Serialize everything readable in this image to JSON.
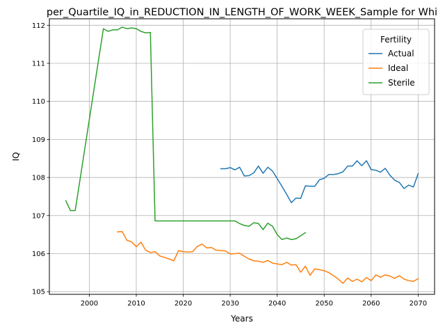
{
  "chart_data": {
    "type": "line",
    "title": "per_Quartile_IQ_in_REDUCTION_IN_LENGTH_OF_WORK_WEEK_Sample for Whi",
    "xlabel": "Years",
    "ylabel": "IQ",
    "xlim": [
      1991.5,
      2073.5
    ],
    "ylim": [
      104.93,
      112.17
    ],
    "x_ticks": [
      2000,
      2010,
      2020,
      2030,
      2040,
      2050,
      2060,
      2070
    ],
    "y_ticks": [
      105,
      106,
      107,
      108,
      109,
      110,
      111,
      112
    ],
    "grid": true,
    "legend": {
      "title": "Fertility",
      "placement": "top-right"
    },
    "series": [
      {
        "name": "Actual",
        "color": "#1f77b4",
        "points": [
          [
            2028,
            108.23
          ],
          [
            2029,
            108.23
          ],
          [
            2030,
            108.26
          ],
          [
            2031,
            108.2
          ],
          [
            2032,
            108.27
          ],
          [
            2033,
            108.04
          ],
          [
            2034,
            108.05
          ],
          [
            2035,
            108.12
          ],
          [
            2036,
            108.3
          ],
          [
            2037,
            108.11
          ],
          [
            2038,
            108.27
          ],
          [
            2039,
            108.17
          ],
          [
            2040,
            107.97
          ],
          [
            2041,
            107.77
          ],
          [
            2042,
            107.56
          ],
          [
            2043,
            107.34
          ],
          [
            2044,
            107.46
          ],
          [
            2045,
            107.45
          ],
          [
            2046,
            107.78
          ],
          [
            2047,
            107.77
          ],
          [
            2048,
            107.77
          ],
          [
            2049,
            107.94
          ],
          [
            2050,
            107.98
          ],
          [
            2051,
            108.08
          ],
          [
            2052,
            108.08
          ],
          [
            2053,
            108.1
          ],
          [
            2054,
            108.15
          ],
          [
            2055,
            108.3
          ],
          [
            2056,
            108.3
          ],
          [
            2057,
            108.44
          ],
          [
            2058,
            108.31
          ],
          [
            2059,
            108.44
          ],
          [
            2060,
            108.21
          ],
          [
            2061,
            108.19
          ],
          [
            2062,
            108.14
          ],
          [
            2063,
            108.24
          ],
          [
            2064,
            108.06
          ],
          [
            2065,
            107.93
          ],
          [
            2066,
            107.87
          ],
          [
            2067,
            107.71
          ],
          [
            2068,
            107.8
          ],
          [
            2069,
            107.75
          ],
          [
            2070,
            108.1
          ]
        ]
      },
      {
        "name": "Ideal",
        "color": "#ff7f0e",
        "points": [
          [
            2006,
            106.57
          ],
          [
            2007,
            106.58
          ],
          [
            2008,
            106.35
          ],
          [
            2009,
            106.31
          ],
          [
            2010,
            106.18
          ],
          [
            2011,
            106.3
          ],
          [
            2012,
            106.09
          ],
          [
            2013,
            106.03
          ],
          [
            2014,
            106.05
          ],
          [
            2015,
            105.94
          ],
          [
            2016,
            105.9
          ],
          [
            2017,
            105.86
          ],
          [
            2018,
            105.81
          ],
          [
            2019,
            106.08
          ],
          [
            2020,
            106.05
          ],
          [
            2021,
            106.04
          ],
          [
            2022,
            106.05
          ],
          [
            2023,
            106.19
          ],
          [
            2024,
            106.25
          ],
          [
            2025,
            106.15
          ],
          [
            2026,
            106.16
          ],
          [
            2027,
            106.09
          ],
          [
            2028,
            106.08
          ],
          [
            2029,
            106.07
          ],
          [
            2030,
            105.99
          ],
          [
            2031,
            106.0
          ],
          [
            2032,
            106.01
          ],
          [
            2033,
            105.93
          ],
          [
            2034,
            105.86
          ],
          [
            2035,
            105.81
          ],
          [
            2036,
            105.8
          ],
          [
            2037,
            105.77
          ],
          [
            2038,
            105.82
          ],
          [
            2039,
            105.75
          ],
          [
            2040,
            105.73
          ],
          [
            2041,
            105.71
          ],
          [
            2042,
            105.77
          ],
          [
            2043,
            105.7
          ],
          [
            2044,
            105.71
          ],
          [
            2045,
            105.51
          ],
          [
            2046,
            105.67
          ],
          [
            2047,
            105.43
          ],
          [
            2048,
            105.6
          ],
          [
            2049,
            105.58
          ],
          [
            2050,
            105.55
          ],
          [
            2051,
            105.5
          ],
          [
            2052,
            105.42
          ],
          [
            2053,
            105.33
          ],
          [
            2054,
            105.22
          ],
          [
            2055,
            105.36
          ],
          [
            2056,
            105.27
          ],
          [
            2057,
            105.33
          ],
          [
            2058,
            105.26
          ],
          [
            2059,
            105.37
          ],
          [
            2060,
            105.29
          ],
          [
            2061,
            105.44
          ],
          [
            2062,
            105.38
          ],
          [
            2063,
            105.44
          ],
          [
            2064,
            105.41
          ],
          [
            2065,
            105.35
          ],
          [
            2066,
            105.42
          ],
          [
            2067,
            105.33
          ],
          [
            2068,
            105.29
          ],
          [
            2069,
            105.27
          ],
          [
            2070,
            105.34
          ]
        ]
      },
      {
        "name": "Sterile",
        "color": "#2ca02c",
        "points": [
          [
            1995,
            107.39
          ],
          [
            1996,
            107.13
          ],
          [
            1997,
            107.13
          ],
          [
            2003,
            111.91
          ],
          [
            2004,
            111.84
          ],
          [
            2005,
            111.88
          ],
          [
            2006,
            111.88
          ],
          [
            2007,
            111.95
          ],
          [
            2008,
            111.91
          ],
          [
            2009,
            111.93
          ],
          [
            2010,
            111.91
          ],
          [
            2011,
            111.84
          ],
          [
            2012,
            111.8
          ],
          [
            2013,
            111.81
          ],
          [
            2014,
            106.86
          ],
          [
            2015,
            106.86
          ],
          [
            2016,
            106.86
          ],
          [
            2017,
            106.86
          ],
          [
            2018,
            106.86
          ],
          [
            2019,
            106.86
          ],
          [
            2020,
            106.86
          ],
          [
            2021,
            106.86
          ],
          [
            2022,
            106.86
          ],
          [
            2023,
            106.86
          ],
          [
            2024,
            106.86
          ],
          [
            2025,
            106.86
          ],
          [
            2026,
            106.86
          ],
          [
            2027,
            106.86
          ],
          [
            2028,
            106.86
          ],
          [
            2029,
            106.86
          ],
          [
            2030,
            106.86
          ],
          [
            2031,
            106.86
          ],
          [
            2032,
            106.79
          ],
          [
            2033,
            106.74
          ],
          [
            2034,
            106.72
          ],
          [
            2035,
            106.81
          ],
          [
            2036,
            106.79
          ],
          [
            2037,
            106.63
          ],
          [
            2038,
            106.8
          ],
          [
            2039,
            106.72
          ],
          [
            2040,
            106.5
          ],
          [
            2041,
            106.37
          ],
          [
            2042,
            106.41
          ],
          [
            2043,
            106.37
          ],
          [
            2044,
            106.39
          ],
          [
            2045,
            106.47
          ],
          [
            2046,
            106.55
          ]
        ]
      }
    ]
  }
}
